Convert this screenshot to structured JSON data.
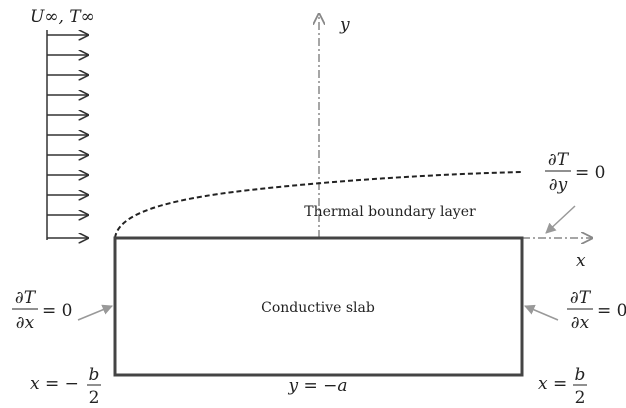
{
  "flow_label": "U∞, T∞",
  "axes": {
    "y": "y",
    "x": "x"
  },
  "boundary_layer_label": "Thermal boundary layer",
  "slab_label": "Conductive slab",
  "top_condition": {
    "numerator": "∂T",
    "denominator": "∂y",
    "rhs": "= 0"
  },
  "left_condition": {
    "numerator": "∂T",
    "denominator": "∂x",
    "rhs": "= 0"
  },
  "right_condition": {
    "numerator": "∂T",
    "denominator": "∂x",
    "rhs": "= 0"
  },
  "left_edge": {
    "lhs": "x = −",
    "numerator": "b",
    "denominator": "2"
  },
  "bottom_edge": "y = −a",
  "right_edge": {
    "lhs": "x =",
    "numerator": "b",
    "denominator": "2"
  }
}
